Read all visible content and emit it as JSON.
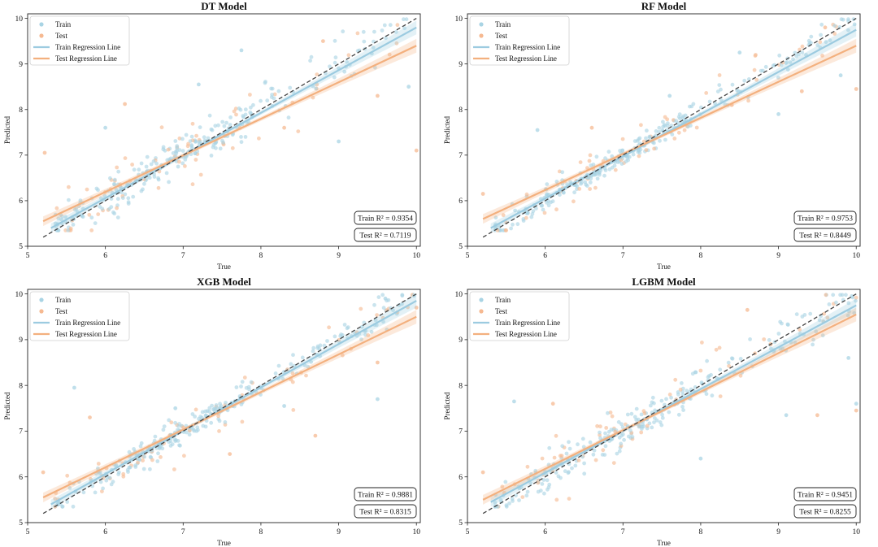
{
  "figure": {
    "x_label": "True",
    "y_label": "Predicted",
    "legend": {
      "train": "Train",
      "test": "Test",
      "train_line": "Train Regression Line",
      "test_line": "Test Regression Line"
    },
    "colors": {
      "train": "#a9d4e4",
      "test": "#f6b991",
      "train_line": "#9ccbe0",
      "test_line": "#f3b07e",
      "diagonal": "#444444"
    }
  },
  "chart_data": [
    {
      "type": "scatter",
      "title": "DT Model",
      "xlabel": "True",
      "ylabel": "Predicted",
      "xlim": [
        5.0,
        10.05
      ],
      "ylim": [
        5.0,
        10.1
      ],
      "x_ticks": [
        "5",
        "6",
        "7",
        "8",
        "9",
        "10"
      ],
      "y_ticks": [
        "5",
        "6",
        "7",
        "8",
        "9",
        "10"
      ],
      "diagonal": [
        [
          5.2,
          5.2
        ],
        [
          10.0,
          10.0
        ]
      ],
      "train_line": [
        [
          5.3,
          5.4
        ],
        [
          10.0,
          9.8
        ]
      ],
      "test_line": [
        [
          5.2,
          5.55
        ],
        [
          10.0,
          9.4
        ]
      ],
      "train_r2": "Train R² = 0.9354",
      "test_r2": "Test R² = 0.7119",
      "scatter_spread": 0.33,
      "outliers": [
        [
          5.22,
          7.05
        ],
        [
          6.0,
          7.6
        ],
        [
          6.25,
          8.12
        ],
        [
          7.75,
          9.3
        ],
        [
          8.3,
          7.6
        ],
        [
          9.0,
          7.3
        ],
        [
          9.5,
          8.3
        ],
        [
          9.9,
          8.5
        ],
        [
          10.0,
          7.1
        ],
        [
          7.2,
          8.55
        ],
        [
          8.8,
          9.5
        ]
      ]
    },
    {
      "type": "scatter",
      "title": "RF Model",
      "xlabel": "True",
      "ylabel": "Predicted",
      "xlim": [
        5.0,
        10.05
      ],
      "ylim": [
        5.0,
        10.1
      ],
      "x_ticks": [
        "5",
        "6",
        "7",
        "8",
        "9",
        "10"
      ],
      "y_ticks": [
        "5",
        "6",
        "7",
        "8",
        "9",
        "10"
      ],
      "diagonal": [
        [
          5.2,
          5.2
        ],
        [
          10.0,
          10.0
        ]
      ],
      "train_line": [
        [
          5.3,
          5.4
        ],
        [
          10.0,
          9.75
        ]
      ],
      "test_line": [
        [
          5.2,
          5.6
        ],
        [
          10.0,
          9.4
        ]
      ],
      "train_r2": "Train R² = 0.9753",
      "test_r2": "Test R² = 0.8449",
      "scatter_spread": 0.2,
      "outliers": [
        [
          5.2,
          6.15
        ],
        [
          5.9,
          7.55
        ],
        [
          6.6,
          7.6
        ],
        [
          7.6,
          8.3
        ],
        [
          8.4,
          8.1
        ],
        [
          9.0,
          7.9
        ],
        [
          9.3,
          8.4
        ],
        [
          9.8,
          8.75
        ],
        [
          10.0,
          8.45
        ],
        [
          8.5,
          9.25
        ],
        [
          9.6,
          9.8
        ]
      ]
    },
    {
      "type": "scatter",
      "title": "XGB Model",
      "xlabel": "True",
      "ylabel": "Predicted",
      "xlim": [
        5.0,
        10.05
      ],
      "ylim": [
        5.0,
        10.1
      ],
      "x_ticks": [
        "5",
        "6",
        "7",
        "8",
        "9",
        "10"
      ],
      "y_ticks": [
        "5",
        "6",
        "7",
        "8",
        "9",
        "10"
      ],
      "diagonal": [
        [
          5.2,
          5.2
        ],
        [
          10.0,
          10.0
        ]
      ],
      "train_line": [
        [
          5.3,
          5.4
        ],
        [
          10.0,
          9.85
        ]
      ],
      "test_line": [
        [
          5.2,
          5.55
        ],
        [
          10.0,
          9.5
        ]
      ],
      "train_r2": "Train R² = 0.9881",
      "test_r2": "Test R² = 0.8315",
      "scatter_spread": 0.22,
      "outliers": [
        [
          5.2,
          6.1
        ],
        [
          5.6,
          7.95
        ],
        [
          5.8,
          7.3
        ],
        [
          6.9,
          7.5
        ],
        [
          7.6,
          6.5
        ],
        [
          8.3,
          7.55
        ],
        [
          8.7,
          6.9
        ],
        [
          9.5,
          7.7
        ],
        [
          9.5,
          8.5
        ],
        [
          9.6,
          9.9
        ],
        [
          10.0,
          9.7
        ]
      ]
    },
    {
      "type": "scatter",
      "title": "LGBM Model",
      "xlabel": "True",
      "ylabel": "Predicted",
      "xlim": [
        5.0,
        10.05
      ],
      "ylim": [
        5.0,
        10.1
      ],
      "x_ticks": [
        "5",
        "6",
        "7",
        "8",
        "9",
        "10"
      ],
      "y_ticks": [
        "5",
        "6",
        "7",
        "8",
        "9",
        "10"
      ],
      "diagonal": [
        [
          5.2,
          5.2
        ],
        [
          10.0,
          10.0
        ]
      ],
      "train_line": [
        [
          5.3,
          5.45
        ],
        [
          10.0,
          9.75
        ]
      ],
      "test_line": [
        [
          5.2,
          5.5
        ],
        [
          10.0,
          9.55
        ]
      ],
      "train_r2": "Train R² = 0.9451",
      "test_r2": "Test R² = 0.8255",
      "scatter_spread": 0.3,
      "outliers": [
        [
          5.2,
          6.1
        ],
        [
          5.6,
          7.65
        ],
        [
          6.1,
          7.6
        ],
        [
          8.0,
          6.4
        ],
        [
          8.6,
          9.65
        ],
        [
          9.1,
          7.35
        ],
        [
          9.5,
          7.35
        ],
        [
          10.0,
          7.6
        ],
        [
          10.0,
          7.45
        ],
        [
          9.9,
          8.6
        ],
        [
          8.9,
          8.9
        ]
      ]
    }
  ]
}
